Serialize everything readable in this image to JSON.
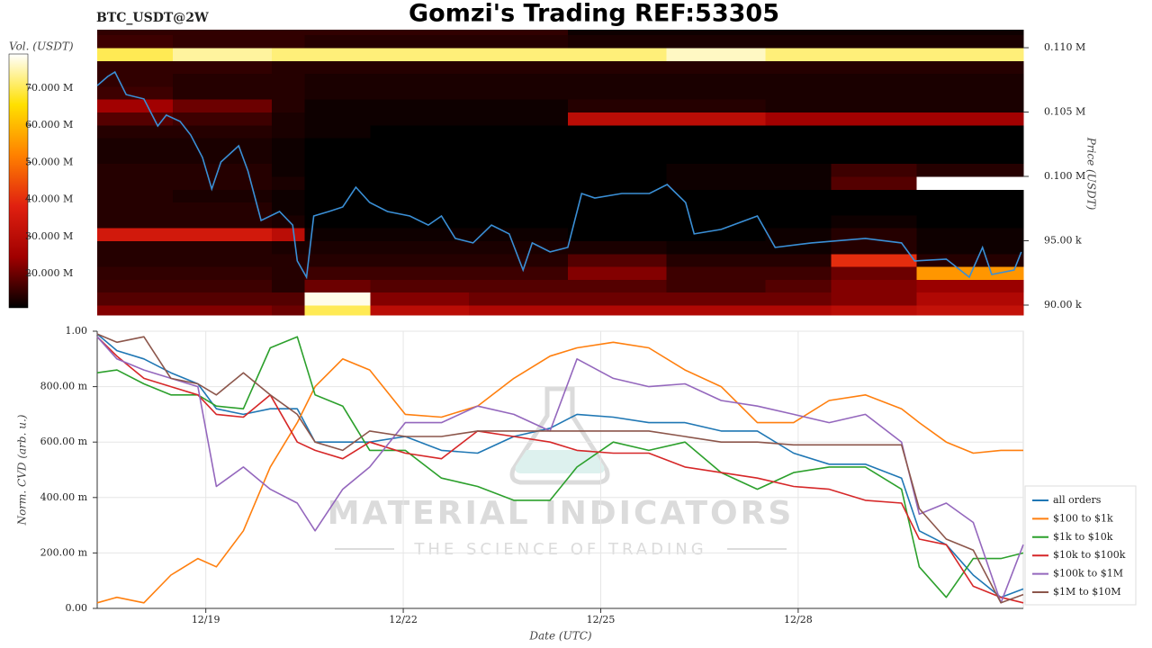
{
  "chart_data": [
    {
      "type": "heatmap",
      "title": "Gomzi's Trading REF:53305",
      "symbol": "BTC_USDT@2W",
      "colorbar_label": "Vol. (USDT)",
      "ylabel": "Price (USDT)",
      "colormap": [
        "#000000",
        "#a00000",
        "#e02010",
        "#ff8000",
        "#ffe000",
        "#ffffff"
      ],
      "xlim": [
        17.35,
        31.42
      ],
      "ylim": [
        89230,
        111400
      ],
      "yticks": [
        {
          "value": 110000,
          "label": "0.110 M"
        },
        {
          "value": 105000,
          "label": "0.105 M"
        },
        {
          "value": 100000,
          "label": "0.100 M"
        },
        {
          "value": 95000,
          "label": "95.00 k"
        },
        {
          "value": 90000,
          "label": "90.00 k"
        }
      ],
      "clim": [
        10800000,
        79200000
      ],
      "cticks": [
        {
          "value": 70000000,
          "label": "70.000 M"
        },
        {
          "value": 60000000,
          "label": "60.000 M"
        },
        {
          "value": 50000000,
          "label": "50.000 M"
        },
        {
          "value": 40000000,
          "label": "40.000 M"
        },
        {
          "value": 30000000,
          "label": "30.000 M"
        },
        {
          "value": 20000000,
          "label": "20.000 M"
        }
      ],
      "x_edges": [
        17.35,
        18.5,
        20,
        20.5,
        21.5,
        23,
        24.5,
        26,
        27.5,
        28.5,
        29.8,
        31.42
      ],
      "y_edges": [
        89230,
        90000,
        91000,
        92000,
        93000,
        94000,
        95000,
        96000,
        97000,
        98000,
        99000,
        100000,
        101000,
        102000,
        103000,
        104000,
        105000,
        106000,
        107000,
        108000,
        109000,
        110000,
        111000,
        111400
      ],
      "z": [
        [
          22000000,
          22000000,
          20000000,
          70000000,
          30000000,
          28000000,
          28000000,
          28000000,
          28000000,
          30000000,
          32000000
        ],
        [
          18000000,
          18000000,
          18000000,
          78000000,
          22000000,
          20000000,
          20000000,
          20000000,
          20000000,
          22000000,
          28000000
        ],
        [
          16000000,
          16000000,
          14000000,
          20000000,
          18000000,
          18000000,
          18000000,
          16000000,
          18000000,
          22000000,
          24000000
        ],
        [
          15000000,
          15000000,
          14000000,
          16000000,
          16000000,
          16000000,
          22000000,
          16000000,
          16000000,
          20000000,
          55000000
        ],
        [
          14000000,
          14000000,
          14000000,
          14000000,
          14000000,
          14000000,
          18000000,
          14000000,
          14000000,
          40000000,
          14000000
        ],
        [
          14000000,
          14000000,
          13000000,
          13000000,
          13000000,
          13000000,
          13000000,
          12000000,
          12000000,
          14000000,
          12000000
        ],
        [
          35000000,
          35000000,
          30000000,
          12000000,
          12000000,
          12000000,
          0,
          0,
          12000000,
          14000000,
          12000000
        ],
        [
          14000000,
          14000000,
          13000000,
          10000000,
          0,
          0,
          0,
          0,
          0,
          12000000,
          0
        ],
        [
          14000000,
          14000000,
          12000000,
          0,
          0,
          0,
          0,
          0,
          0,
          0,
          0
        ],
        [
          14000000,
          13000000,
          12000000,
          0,
          0,
          0,
          0,
          0,
          0,
          0,
          0
        ],
        [
          14000000,
          14000000,
          13000000,
          0,
          0,
          0,
          0,
          12000000,
          12000000,
          18000000,
          80000000
        ],
        [
          14000000,
          14000000,
          12000000,
          0,
          0,
          0,
          0,
          12000000,
          12000000,
          16000000,
          14000000
        ],
        [
          13000000,
          13000000,
          12000000,
          0,
          0,
          0,
          0,
          0,
          0,
          0,
          0
        ],
        [
          13000000,
          13000000,
          12000000,
          0,
          0,
          0,
          0,
          0,
          0,
          0,
          0
        ],
        [
          14000000,
          14000000,
          13000000,
          12000000,
          0,
          0,
          0,
          0,
          0,
          0,
          0
        ],
        [
          18000000,
          16000000,
          13000000,
          12000000,
          12000000,
          12000000,
          30000000,
          30000000,
          25000000,
          25000000,
          25000000
        ],
        [
          25000000,
          20000000,
          14000000,
          12000000,
          12000000,
          12000000,
          14000000,
          14000000,
          13000000,
          13000000,
          13000000
        ],
        [
          16000000,
          14000000,
          14000000,
          13000000,
          13000000,
          13000000,
          13000000,
          13000000,
          13000000,
          13000000,
          13000000
        ],
        [
          15000000,
          14000000,
          14000000,
          13000000,
          13000000,
          13000000,
          13000000,
          13000000,
          13000000,
          13000000,
          13000000
        ],
        [
          15000000,
          15000000,
          14000000,
          14000000,
          14000000,
          14000000,
          14000000,
          14000000,
          14000000,
          14000000,
          14000000
        ],
        [
          70000000,
          74000000,
          72000000,
          72000000,
          72000000,
          72000000,
          72000000,
          76000000,
          72000000,
          72000000,
          72000000
        ],
        [
          16000000,
          15000000,
          15000000,
          14000000,
          14000000,
          14000000,
          13000000,
          13000000,
          13000000,
          13000000,
          13000000
        ],
        [
          15000000,
          15000000,
          15000000,
          15000000,
          15000000,
          15000000,
          12000000,
          12000000,
          12000000,
          12000000,
          12000000
        ]
      ],
      "line": {
        "color": "#3a8fd6",
        "x": [
          17.35,
          17.51,
          17.62,
          17.79,
          18.06,
          18.27,
          18.4,
          18.61,
          18.77,
          18.95,
          19.09,
          19.23,
          19.5,
          19.64,
          19.84,
          20.12,
          20.32,
          20.39,
          20.53,
          20.64,
          20.87,
          21.08,
          21.28,
          21.49,
          21.76,
          22.1,
          22.38,
          22.58,
          22.79,
          23.06,
          23.34,
          23.61,
          23.82,
          23.96,
          24.23,
          24.5,
          24.71,
          24.91,
          25.32,
          25.74,
          26.01,
          26.29,
          26.42,
          26.83,
          27.38,
          27.65,
          28.2,
          29.02,
          29.57,
          29.77,
          30.25,
          30.6,
          30.8,
          30.94,
          31.28,
          31.39
        ],
        "y": [
          107060,
          107760,
          108110,
          106360,
          106020,
          103920,
          104760,
          104270,
          103220,
          101470,
          99020,
          101120,
          102380,
          100420,
          96570,
          97270,
          96220,
          93430,
          92170,
          96920,
          97270,
          97620,
          99160,
          97970,
          97270,
          96920,
          96220,
          96920,
          95180,
          94830,
          96220,
          95530,
          92730,
          94830,
          94130,
          94480,
          98670,
          98320,
          98670,
          98670,
          99370,
          97970,
          95530,
          95880,
          96920,
          94480,
          94830,
          95180,
          94830,
          93430,
          93570,
          92170,
          94480,
          92380,
          92730,
          94130
        ]
      }
    },
    {
      "type": "line",
      "xlabel": "Date (UTC)",
      "ylabel": "Norm. CVD (arb. u.)",
      "grid": true,
      "legend": "lower right",
      "watermark": {
        "title": "MATERIAL INDICATORS",
        "subtitle": "THE SCIENCE OF TRADING"
      },
      "xlim": [
        17.35,
        31.42
      ],
      "ylim": [
        0,
        1
      ],
      "xticks": [
        {
          "value": 19,
          "label": "12/19"
        },
        {
          "value": 22,
          "label": "12/22"
        },
        {
          "value": 25,
          "label": "12/25"
        },
        {
          "value": 28,
          "label": "12/28"
        }
      ],
      "yticks": [
        {
          "value": 1,
          "label": "1.00"
        },
        {
          "value": 0.8,
          "label": "800.00 m"
        },
        {
          "value": 0.6,
          "label": "600.00 m"
        },
        {
          "value": 0.4,
          "label": "400.00 m"
        },
        {
          "value": 0.2,
          "label": "200.00 m"
        },
        {
          "value": 0,
          "label": "0.00"
        }
      ],
      "x": [
        17.35,
        17.65,
        18.06,
        18.47,
        18.88,
        19.16,
        19.57,
        19.98,
        20.39,
        20.66,
        21.08,
        21.49,
        22.03,
        22.58,
        23.13,
        23.68,
        24.23,
        24.64,
        25.19,
        25.73,
        26.28,
        26.83,
        27.38,
        27.93,
        28.47,
        29.02,
        29.57,
        29.84,
        30.25,
        30.66,
        31.08,
        31.42
      ],
      "series": [
        {
          "name": "all orders",
          "color": "#1f77b4",
          "values": [
            0.99,
            0.93,
            0.9,
            0.85,
            0.81,
            0.72,
            0.7,
            0.72,
            0.72,
            0.6,
            0.6,
            0.6,
            0.62,
            0.57,
            0.56,
            0.62,
            0.65,
            0.7,
            0.69,
            0.67,
            0.67,
            0.64,
            0.64,
            0.56,
            0.52,
            0.52,
            0.47,
            0.28,
            0.23,
            0.12,
            0.04,
            0.07
          ]
        },
        {
          "name": "$100 to $1k",
          "color": "#ff7f0e",
          "values": [
            0.02,
            0.04,
            0.02,
            0.12,
            0.18,
            0.15,
            0.28,
            0.51,
            0.67,
            0.8,
            0.9,
            0.86,
            0.7,
            0.69,
            0.73,
            0.83,
            0.91,
            0.94,
            0.96,
            0.94,
            0.86,
            0.8,
            0.67,
            0.67,
            0.75,
            0.77,
            0.72,
            0.67,
            0.6,
            0.56,
            0.57,
            0.57
          ]
        },
        {
          "name": "$1k to $10k",
          "color": "#2ca02c",
          "values": [
            0.85,
            0.86,
            0.81,
            0.77,
            0.77,
            0.73,
            0.72,
            0.94,
            0.98,
            0.77,
            0.73,
            0.57,
            0.57,
            0.47,
            0.44,
            0.39,
            0.39,
            0.51,
            0.6,
            0.57,
            0.6,
            0.49,
            0.43,
            0.49,
            0.51,
            0.51,
            0.43,
            0.15,
            0.04,
            0.18,
            0.18,
            0.2
          ]
        },
        {
          "name": "$10k to $100k",
          "color": "#d62728",
          "values": [
            0.98,
            0.91,
            0.83,
            0.8,
            0.77,
            0.7,
            0.69,
            0.77,
            0.6,
            0.57,
            0.54,
            0.6,
            0.56,
            0.54,
            0.64,
            0.62,
            0.6,
            0.57,
            0.56,
            0.56,
            0.51,
            0.49,
            0.47,
            0.44,
            0.43,
            0.39,
            0.38,
            0.25,
            0.23,
            0.08,
            0.04,
            0.02
          ]
        },
        {
          "name": "$100k to $1M",
          "color": "#9467bd",
          "values": [
            0.98,
            0.9,
            0.86,
            0.83,
            0.8,
            0.44,
            0.51,
            0.43,
            0.38,
            0.28,
            0.43,
            0.51,
            0.67,
            0.67,
            0.73,
            0.7,
            0.64,
            0.9,
            0.83,
            0.8,
            0.81,
            0.75,
            0.73,
            0.7,
            0.67,
            0.7,
            0.6,
            0.34,
            0.38,
            0.31,
            0.02,
            0.23
          ]
        },
        {
          "name": "$1M to $10M",
          "color": "#8c564b",
          "values": [
            0.99,
            0.96,
            0.98,
            0.83,
            0.81,
            0.77,
            0.85,
            0.77,
            0.7,
            0.6,
            0.57,
            0.64,
            0.62,
            0.62,
            0.64,
            0.64,
            0.64,
            0.64,
            0.64,
            0.64,
            0.62,
            0.6,
            0.6,
            0.59,
            0.59,
            0.59,
            0.59,
            0.36,
            0.25,
            0.21,
            0.02,
            0.05
          ]
        }
      ]
    }
  ]
}
